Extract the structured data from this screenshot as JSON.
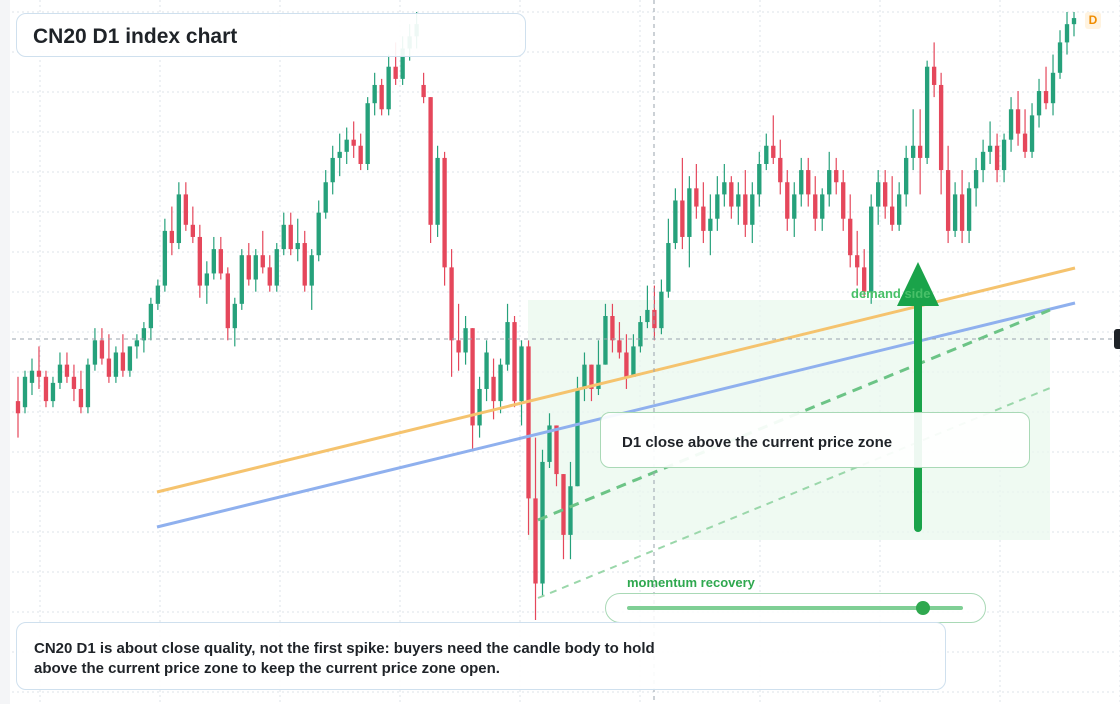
{
  "header": {
    "title": "CN20 D1 index chart",
    "timeframe_badge": "D"
  },
  "annotations": {
    "zone_note": "D1 close above the current price zone",
    "demand_label": "demand side",
    "momentum_label": "momentum recovery",
    "momentum_level": 0.88,
    "caption": "CN20 D1 is about close quality, not the first spike: buyers need the candle body to hold above the current price zone to keep the current price zone open."
  },
  "colors": {
    "up": "#26a17b",
    "down": "#e5475b",
    "zone_fill": "#eaf8ee",
    "orange_line": "#f5c36e",
    "blue_line": "#8fb0ee",
    "green_dash": "#6cc486",
    "arrow": "#1aa34a",
    "grid": "#dde3ea"
  },
  "chart_data": {
    "type": "candlestick",
    "title": "CN20 D1 index chart",
    "xlabel": "",
    "ylabel": "",
    "ylim": [
      0,
      100
    ],
    "grid": true,
    "candles": [
      {
        "o": 36,
        "h": 40,
        "l": 30,
        "c": 34
      },
      {
        "o": 35,
        "h": 41,
        "l": 34,
        "c": 40
      },
      {
        "o": 39,
        "h": 43,
        "l": 37,
        "c": 41
      },
      {
        "o": 41,
        "h": 45,
        "l": 38,
        "c": 40
      },
      {
        "o": 40,
        "h": 41,
        "l": 35,
        "c": 36
      },
      {
        "o": 36,
        "h": 40,
        "l": 35,
        "c": 39
      },
      {
        "o": 39,
        "h": 44,
        "l": 38,
        "c": 42
      },
      {
        "o": 42,
        "h": 44,
        "l": 39,
        "c": 40
      },
      {
        "o": 40,
        "h": 42,
        "l": 36,
        "c": 38
      },
      {
        "o": 38,
        "h": 41,
        "l": 34,
        "c": 35
      },
      {
        "o": 35,
        "h": 43,
        "l": 34,
        "c": 42
      },
      {
        "o": 42,
        "h": 48,
        "l": 41,
        "c": 46
      },
      {
        "o": 46,
        "h": 48,
        "l": 42,
        "c": 43
      },
      {
        "o": 43,
        "h": 47,
        "l": 39,
        "c": 40
      },
      {
        "o": 40,
        "h": 45,
        "l": 39,
        "c": 44
      },
      {
        "o": 44,
        "h": 47,
        "l": 40,
        "c": 41
      },
      {
        "o": 41,
        "h": 45,
        "l": 40,
        "c": 45
      },
      {
        "o": 45,
        "h": 47,
        "l": 43,
        "c": 46
      },
      {
        "o": 46,
        "h": 49,
        "l": 44,
        "c": 48
      },
      {
        "o": 48,
        "h": 53,
        "l": 46,
        "c": 52
      },
      {
        "o": 52,
        "h": 56,
        "l": 51,
        "c": 55
      },
      {
        "o": 55,
        "h": 66,
        "l": 54,
        "c": 64
      },
      {
        "o": 64,
        "h": 68,
        "l": 60,
        "c": 62
      },
      {
        "o": 62,
        "h": 72,
        "l": 61,
        "c": 70
      },
      {
        "o": 70,
        "h": 72,
        "l": 64,
        "c": 65
      },
      {
        "o": 65,
        "h": 68,
        "l": 62,
        "c": 63
      },
      {
        "o": 63,
        "h": 65,
        "l": 53,
        "c": 55
      },
      {
        "o": 55,
        "h": 59,
        "l": 52,
        "c": 57
      },
      {
        "o": 57,
        "h": 63,
        "l": 56,
        "c": 61
      },
      {
        "o": 61,
        "h": 63,
        "l": 56,
        "c": 57
      },
      {
        "o": 57,
        "h": 58,
        "l": 46,
        "c": 48
      },
      {
        "o": 48,
        "h": 53,
        "l": 45,
        "c": 52
      },
      {
        "o": 52,
        "h": 61,
        "l": 51,
        "c": 60
      },
      {
        "o": 60,
        "h": 62,
        "l": 55,
        "c": 56
      },
      {
        "o": 56,
        "h": 61,
        "l": 54,
        "c": 60
      },
      {
        "o": 60,
        "h": 64,
        "l": 57,
        "c": 58
      },
      {
        "o": 58,
        "h": 60,
        "l": 54,
        "c": 55
      },
      {
        "o": 55,
        "h": 62,
        "l": 54,
        "c": 61
      },
      {
        "o": 61,
        "h": 67,
        "l": 60,
        "c": 65
      },
      {
        "o": 65,
        "h": 67,
        "l": 60,
        "c": 61
      },
      {
        "o": 61,
        "h": 66,
        "l": 59,
        "c": 62
      },
      {
        "o": 62,
        "h": 64,
        "l": 54,
        "c": 55
      },
      {
        "o": 55,
        "h": 61,
        "l": 51,
        "c": 60
      },
      {
        "o": 60,
        "h": 69,
        "l": 59,
        "c": 67
      },
      {
        "o": 67,
        "h": 74,
        "l": 66,
        "c": 72
      },
      {
        "o": 72,
        "h": 78,
        "l": 70,
        "c": 76
      },
      {
        "o": 76,
        "h": 80,
        "l": 73,
        "c": 77
      },
      {
        "o": 77,
        "h": 81,
        "l": 75,
        "c": 79
      },
      {
        "o": 79,
        "h": 82,
        "l": 76,
        "c": 78
      },
      {
        "o": 78,
        "h": 80,
        "l": 74,
        "c": 75
      },
      {
        "o": 75,
        "h": 86,
        "l": 74,
        "c": 85
      },
      {
        "o": 85,
        "h": 90,
        "l": 83,
        "c": 88
      },
      {
        "o": 88,
        "h": 89,
        "l": 83,
        "c": 84
      },
      {
        "o": 84,
        "h": 93,
        "l": 83,
        "c": 91
      },
      {
        "o": 91,
        "h": 95,
        "l": 88,
        "c": 89
      },
      {
        "o": 89,
        "h": 96,
        "l": 88,
        "c": 94
      },
      {
        "o": 94,
        "h": 98,
        "l": 92,
        "c": 96
      },
      {
        "o": 96,
        "h": 100,
        "l": 94,
        "c": 98
      },
      {
        "o": 88,
        "h": 90,
        "l": 85,
        "c": 86
      },
      {
        "o": 86,
        "h": 86,
        "l": 62,
        "c": 65
      },
      {
        "o": 65,
        "h": 78,
        "l": 63,
        "c": 76
      },
      {
        "o": 76,
        "h": 77,
        "l": 55,
        "c": 58
      },
      {
        "o": 58,
        "h": 61,
        "l": 40,
        "c": 46
      },
      {
        "o": 46,
        "h": 52,
        "l": 41,
        "c": 44
      },
      {
        "o": 44,
        "h": 50,
        "l": 42,
        "c": 48
      },
      {
        "o": 48,
        "h": 48,
        "l": 28,
        "c": 32
      },
      {
        "o": 32,
        "h": 40,
        "l": 30,
        "c": 38
      },
      {
        "o": 38,
        "h": 46,
        "l": 36,
        "c": 44
      },
      {
        "o": 40,
        "h": 43,
        "l": 33,
        "c": 36
      },
      {
        "o": 36,
        "h": 43,
        "l": 34,
        "c": 42
      },
      {
        "o": 42,
        "h": 52,
        "l": 41,
        "c": 49
      },
      {
        "o": 49,
        "h": 50,
        "l": 35,
        "c": 36
      },
      {
        "o": 36,
        "h": 46,
        "l": 32,
        "c": 45
      },
      {
        "o": 45,
        "h": 46,
        "l": 14,
        "c": 20
      },
      {
        "o": 20,
        "h": 30,
        "l": 0,
        "c": 6
      },
      {
        "o": 6,
        "h": 28,
        "l": 4,
        "c": 26
      },
      {
        "o": 26,
        "h": 34,
        "l": 25,
        "c": 32
      },
      {
        "o": 32,
        "h": 32,
        "l": 22,
        "c": 24
      },
      {
        "o": 24,
        "h": 24,
        "l": 10,
        "c": 14
      },
      {
        "o": 14,
        "h": 26,
        "l": 10,
        "c": 22
      },
      {
        "o": 22,
        "h": 40,
        "l": 22,
        "c": 38
      },
      {
        "o": 38,
        "h": 44,
        "l": 36,
        "c": 42
      },
      {
        "o": 42,
        "h": 42,
        "l": 36,
        "c": 38
      },
      {
        "o": 38,
        "h": 46,
        "l": 37,
        "c": 42
      },
      {
        "o": 42,
        "h": 52,
        "l": 42,
        "c": 50
      },
      {
        "o": 50,
        "h": 52,
        "l": 44,
        "c": 46
      },
      {
        "o": 46,
        "h": 49,
        "l": 43,
        "c": 44
      },
      {
        "o": 44,
        "h": 47,
        "l": 38,
        "c": 40
      },
      {
        "o": 40,
        "h": 47,
        "l": 40,
        "c": 45
      },
      {
        "o": 45,
        "h": 50,
        "l": 44,
        "c": 49
      },
      {
        "o": 49,
        "h": 55,
        "l": 48,
        "c": 51
      },
      {
        "o": 51,
        "h": 55,
        "l": 46,
        "c": 48
      },
      {
        "o": 48,
        "h": 56,
        "l": 47,
        "c": 54
      },
      {
        "o": 54,
        "h": 66,
        "l": 53,
        "c": 62
      },
      {
        "o": 62,
        "h": 71,
        "l": 61,
        "c": 69
      },
      {
        "o": 69,
        "h": 76,
        "l": 61,
        "c": 63
      },
      {
        "o": 63,
        "h": 73,
        "l": 58,
        "c": 71
      },
      {
        "o": 71,
        "h": 75,
        "l": 66,
        "c": 68
      },
      {
        "o": 68,
        "h": 72,
        "l": 62,
        "c": 64
      },
      {
        "o": 64,
        "h": 70,
        "l": 60,
        "c": 66
      },
      {
        "o": 66,
        "h": 73,
        "l": 64,
        "c": 70
      },
      {
        "o": 70,
        "h": 75,
        "l": 68,
        "c": 72
      },
      {
        "o": 72,
        "h": 73,
        "l": 66,
        "c": 68
      },
      {
        "o": 68,
        "h": 72,
        "l": 65,
        "c": 70
      },
      {
        "o": 70,
        "h": 74,
        "l": 63,
        "c": 65
      },
      {
        "o": 65,
        "h": 72,
        "l": 62,
        "c": 70
      },
      {
        "o": 70,
        "h": 77,
        "l": 68,
        "c": 75
      },
      {
        "o": 75,
        "h": 80,
        "l": 74,
        "c": 78
      },
      {
        "o": 78,
        "h": 83,
        "l": 75,
        "c": 76
      },
      {
        "o": 76,
        "h": 79,
        "l": 70,
        "c": 72
      },
      {
        "o": 72,
        "h": 74,
        "l": 64,
        "c": 66
      },
      {
        "o": 66,
        "h": 72,
        "l": 63,
        "c": 70
      },
      {
        "o": 70,
        "h": 76,
        "l": 68,
        "c": 74
      },
      {
        "o": 74,
        "h": 76,
        "l": 68,
        "c": 70
      },
      {
        "o": 70,
        "h": 73,
        "l": 64,
        "c": 66
      },
      {
        "o": 66,
        "h": 71,
        "l": 64,
        "c": 70
      },
      {
        "o": 70,
        "h": 77,
        "l": 68,
        "c": 74
      },
      {
        "o": 74,
        "h": 76,
        "l": 70,
        "c": 72
      },
      {
        "o": 72,
        "h": 74,
        "l": 64,
        "c": 66
      },
      {
        "o": 66,
        "h": 70,
        "l": 58,
        "c": 60
      },
      {
        "o": 60,
        "h": 64,
        "l": 55,
        "c": 58
      },
      {
        "o": 58,
        "h": 61,
        "l": 53,
        "c": 54
      },
      {
        "o": 54,
        "h": 70,
        "l": 52,
        "c": 68
      },
      {
        "o": 68,
        "h": 74,
        "l": 65,
        "c": 72
      },
      {
        "o": 72,
        "h": 74,
        "l": 66,
        "c": 68
      },
      {
        "o": 68,
        "h": 73,
        "l": 64,
        "c": 65
      },
      {
        "o": 65,
        "h": 72,
        "l": 64,
        "c": 70
      },
      {
        "o": 70,
        "h": 78,
        "l": 68,
        "c": 76
      },
      {
        "o": 76,
        "h": 84,
        "l": 74,
        "c": 78
      },
      {
        "o": 78,
        "h": 84,
        "l": 70,
        "c": 76
      },
      {
        "o": 76,
        "h": 92,
        "l": 75,
        "c": 91
      },
      {
        "o": 91,
        "h": 95,
        "l": 86,
        "c": 88
      },
      {
        "o": 88,
        "h": 90,
        "l": 70,
        "c": 74
      },
      {
        "o": 74,
        "h": 78,
        "l": 62,
        "c": 64
      },
      {
        "o": 64,
        "h": 72,
        "l": 63,
        "c": 70
      },
      {
        "o": 70,
        "h": 74,
        "l": 62,
        "c": 64
      },
      {
        "o": 64,
        "h": 72,
        "l": 62,
        "c": 71
      },
      {
        "o": 71,
        "h": 76,
        "l": 68,
        "c": 74
      },
      {
        "o": 74,
        "h": 79,
        "l": 72,
        "c": 77
      },
      {
        "o": 77,
        "h": 82,
        "l": 75,
        "c": 78
      },
      {
        "o": 78,
        "h": 80,
        "l": 72,
        "c": 74
      },
      {
        "o": 74,
        "h": 80,
        "l": 72,
        "c": 79
      },
      {
        "o": 79,
        "h": 86,
        "l": 77,
        "c": 84
      },
      {
        "o": 84,
        "h": 87,
        "l": 78,
        "c": 80
      },
      {
        "o": 80,
        "h": 84,
        "l": 76,
        "c": 77
      },
      {
        "o": 77,
        "h": 85,
        "l": 76,
        "c": 83
      },
      {
        "o": 83,
        "h": 89,
        "l": 81,
        "c": 87
      },
      {
        "o": 87,
        "h": 91,
        "l": 84,
        "c": 85
      },
      {
        "o": 85,
        "h": 93,
        "l": 83,
        "c": 90
      },
      {
        "o": 90,
        "h": 97,
        "l": 89,
        "c": 95
      },
      {
        "o": 95,
        "h": 100,
        "l": 93,
        "c": 98
      },
      {
        "o": 98,
        "h": 100,
        "l": 96,
        "c": 99
      }
    ]
  }
}
